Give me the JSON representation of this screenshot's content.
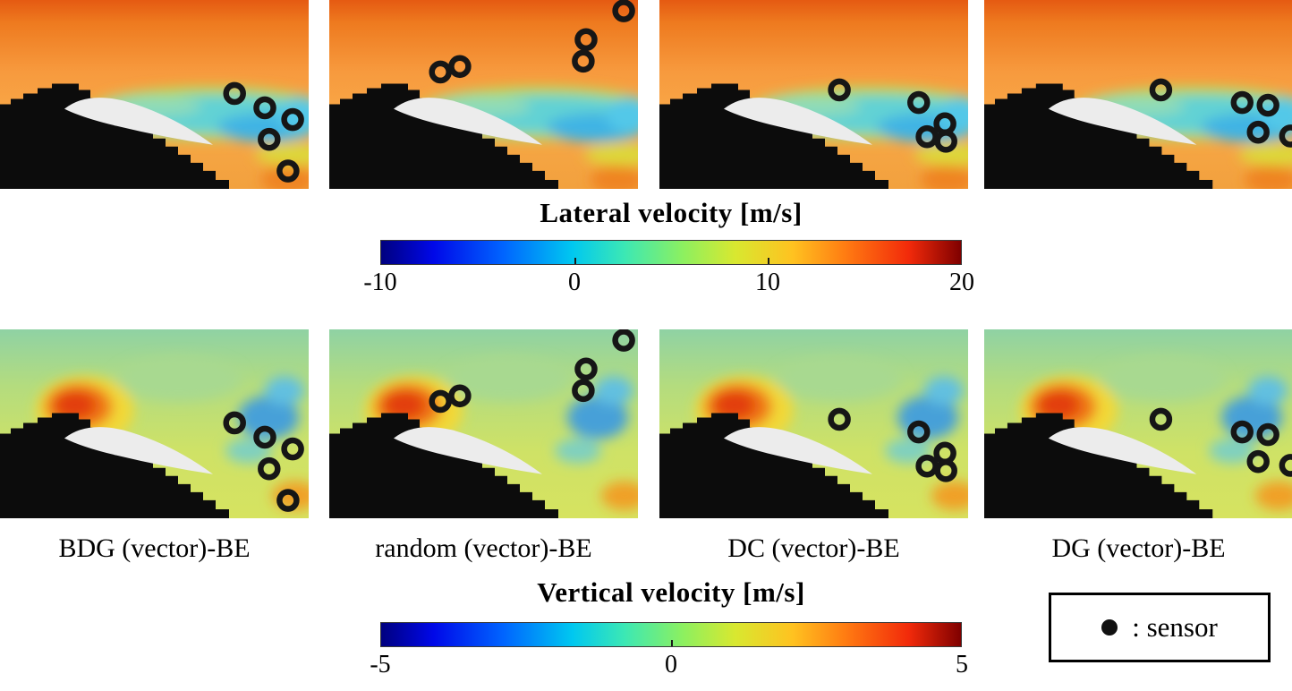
{
  "figure": {
    "rows": {
      "lateral": {
        "title": "Lateral velocity [m/s]",
        "ticks": [
          "-10",
          "0",
          "10",
          "20"
        ]
      },
      "vertical": {
        "title": "Vertical velocity [m/s]",
        "ticks": [
          "-5",
          "0",
          "5"
        ]
      }
    },
    "columns": [
      {
        "label": "BDG (vector)-BE",
        "sensors": [
          [
            0.76,
            0.495
          ],
          [
            0.858,
            0.571
          ],
          [
            0.948,
            0.633
          ],
          [
            0.872,
            0.738
          ],
          [
            0.933,
            0.905
          ]
        ]
      },
      {
        "label": "random (vector)-BE",
        "sensors": [
          [
            0.36,
            0.381
          ],
          [
            0.423,
            0.352
          ],
          [
            0.832,
            0.21
          ],
          [
            0.823,
            0.324
          ],
          [
            0.954,
            0.057
          ]
        ]
      },
      {
        "label": "DC (vector)-BE",
        "sensors": [
          [
            0.583,
            0.476
          ],
          [
            0.84,
            0.543
          ],
          [
            0.925,
            0.655
          ],
          [
            0.867,
            0.724
          ],
          [
            0.928,
            0.748
          ]
        ]
      },
      {
        "label": "DG (vector)-BE",
        "sensors": [
          [
            0.574,
            0.476
          ],
          [
            0.838,
            0.543
          ],
          [
            0.922,
            0.557
          ],
          [
            0.89,
            0.7
          ],
          [
            0.995,
            0.72
          ]
        ]
      }
    ],
    "legend": {
      "symbol": "sensor-ring",
      "label": ": sensor"
    }
  },
  "chart_data": {
    "type": "heatmap",
    "description": "Reconstructed flow fields around an airfoil for four sensor-placement methods; sensor locations drawn as thick black rings over jet-colormap contour fields. Black region is the masked body/hill geometry with a light-gray airfoil inside.",
    "grid": "2 rows x 4 columns",
    "row_quantities": [
      {
        "name": "Lateral velocity [m/s]",
        "colormap": "jet",
        "range": [
          -10,
          20
        ],
        "ticks": [
          -10,
          0,
          10,
          20
        ]
      },
      {
        "name": "Vertical velocity [m/s]",
        "colormap": "jet",
        "range": [
          -5,
          5
        ],
        "ticks": [
          -5,
          0,
          5
        ]
      }
    ],
    "column_labels": [
      "BDG (vector)-BE",
      "random (vector)-BE",
      "DC (vector)-BE",
      "DG (vector)-BE"
    ],
    "sensor_positions_normalized": {
      "BDG (vector)-BE": [
        [
          0.76,
          0.495
        ],
        [
          0.858,
          0.571
        ],
        [
          0.948,
          0.633
        ],
        [
          0.872,
          0.738
        ],
        [
          0.933,
          0.905
        ]
      ],
      "random (vector)-BE": [
        [
          0.36,
          0.381
        ],
        [
          0.423,
          0.352
        ],
        [
          0.832,
          0.21
        ],
        [
          0.823,
          0.324
        ],
        [
          0.954,
          0.057
        ]
      ],
      "DC (vector)-BE": [
        [
          0.583,
          0.476
        ],
        [
          0.84,
          0.543
        ],
        [
          0.925,
          0.655
        ],
        [
          0.867,
          0.724
        ],
        [
          0.928,
          0.748
        ]
      ],
      "DG (vector)-BE": [
        [
          0.574,
          0.476
        ],
        [
          0.838,
          0.543
        ],
        [
          0.922,
          0.557
        ],
        [
          0.89,
          0.7
        ],
        [
          0.995,
          0.72
        ]
      ]
    },
    "legend": ": sensor",
    "legend_position": "bottom-right"
  }
}
